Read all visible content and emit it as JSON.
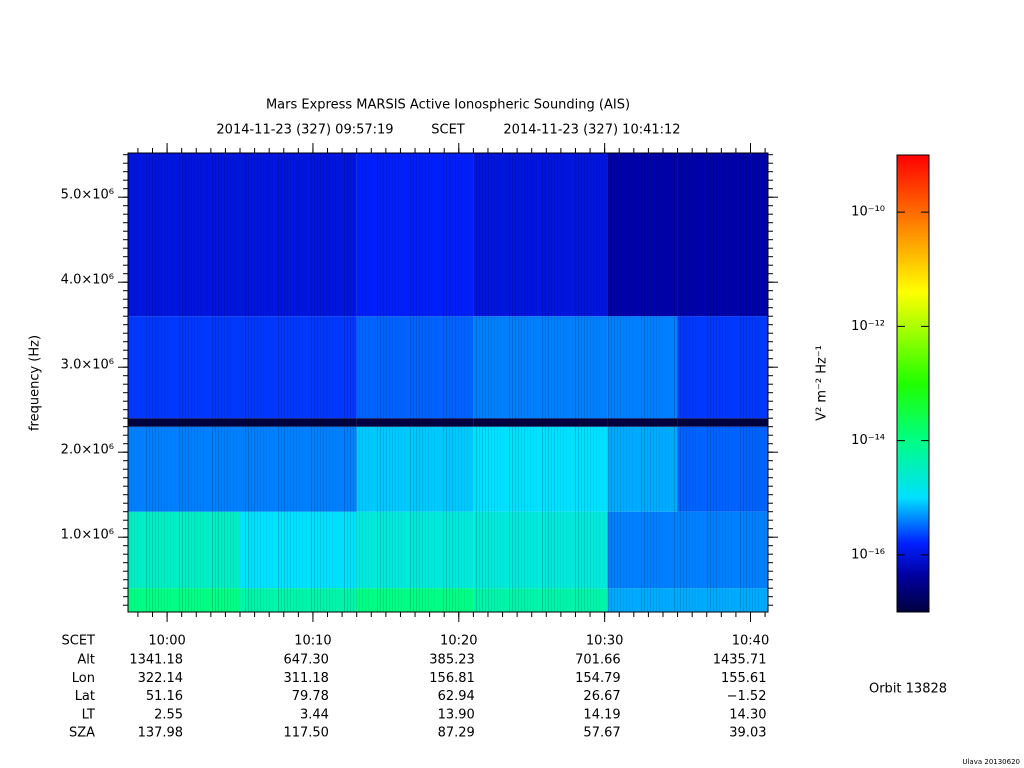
{
  "chart_data": {
    "type": "heatmap",
    "title": "Mars Express MARSIS Active Ionospheric Sounding (AIS)",
    "subtitle_start": "2014-11-23 (327) 09:57:19",
    "subtitle_mid": "SCET",
    "subtitle_end": "2014-11-23 (327) 10:41:12",
    "ylabel": "frequency (Hz)",
    "xlim": [
      597.32,
      641.2
    ],
    "xticks": [
      {
        "value": 600,
        "label": "10:00"
      },
      {
        "value": 610,
        "label": "10:10"
      },
      {
        "value": 620,
        "label": "10:20"
      },
      {
        "value": 630,
        "label": "10:30"
      },
      {
        "value": 640,
        "label": "10:40"
      }
    ],
    "ylim": [
      120000,
      5520000
    ],
    "yticks": [
      {
        "value": 1000000,
        "label": "1.0×10⁶"
      },
      {
        "value": 2000000,
        "label": "2.0×10⁶"
      },
      {
        "value": 3000000,
        "label": "3.0×10⁶"
      },
      {
        "value": 4000000,
        "label": "4.0×10⁶"
      },
      {
        "value": 5000000,
        "label": "5.0×10⁶"
      }
    ],
    "x_bins": [
      597.32,
      605,
      613,
      621,
      630.2,
      635,
      641.2
    ],
    "y_bins": [
      120000,
      400000,
      1300000,
      2300000,
      2400000,
      3600000,
      5520000
    ],
    "z": [
      [
        1e-14,
        5e-15,
        1e-14,
        5e-15,
        6e-16,
        6e-16
      ],
      [
        3e-15,
        1e-15,
        2e-15,
        2e-15,
        4e-16,
        4e-16
      ],
      [
        4e-16,
        4e-16,
        8e-16,
        1e-15,
        6e-16,
        3e-16
      ],
      [
        1e-17,
        1e-17,
        1e-17,
        1e-17,
        1e-17,
        1e-17
      ],
      [
        2e-16,
        2e-16,
        3e-16,
        4e-16,
        4e-16,
        2e-16
      ],
      [
        1e-16,
        1e-16,
        1.5e-16,
        1e-16,
        5e-17,
        5e-17
      ]
    ],
    "zlim": [
      1e-17,
      1e-09
    ],
    "zscale": "log",
    "zticks": [
      {
        "value": 1e-16,
        "label": "10⁻¹⁶"
      },
      {
        "value": 1e-14,
        "label": "10⁻¹⁴"
      },
      {
        "value": 1e-12,
        "label": "10⁻¹²"
      },
      {
        "value": 1e-10,
        "label": "10⁻¹⁰"
      }
    ],
    "zlabel": "V² m⁻² Hz⁻¹",
    "time_row_label": "SCET",
    "ephemeris": [
      {
        "name": "Alt",
        "values": [
          "1341.18",
          "647.30",
          "385.23",
          "701.66",
          "1435.71"
        ]
      },
      {
        "name": "Lon",
        "values": [
          "322.14",
          "311.18",
          "156.81",
          "154.79",
          "155.61"
        ]
      },
      {
        "name": "Lat",
        "values": [
          "51.16",
          "79.78",
          "62.94",
          "26.67",
          "−1.52"
        ]
      },
      {
        "name": "LT",
        "values": [
          "2.55",
          "3.44",
          "13.90",
          "14.19",
          "14.30"
        ]
      },
      {
        "name": "SZA",
        "values": [
          "137.98",
          "117.50",
          "87.29",
          "57.67",
          "39.03"
        ]
      }
    ],
    "orbit": "Orbit 13828",
    "footer": "Ulava 20130620"
  }
}
